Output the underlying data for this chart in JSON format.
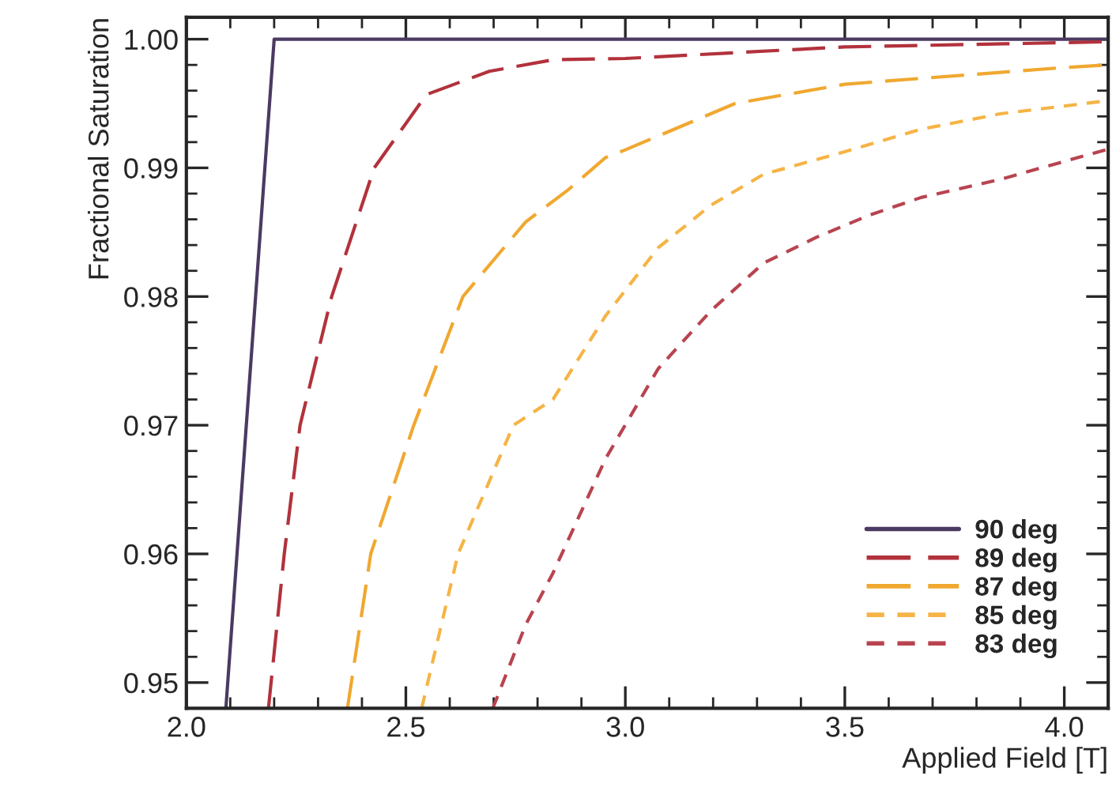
{
  "chart_data": {
    "type": "line",
    "xlabel": "Applied Field [T]",
    "ylabel": "Fractional Saturation",
    "xlim": [
      2.0,
      4.1
    ],
    "ylim": [
      0.948,
      1.0017
    ],
    "xticks": [
      {
        "value": 2.0,
        "label": "2.0"
      },
      {
        "value": 2.5,
        "label": "2.5"
      },
      {
        "value": 3.0,
        "label": "3.0"
      },
      {
        "value": 3.5,
        "label": "3.5"
      },
      {
        "value": 4.0,
        "label": "4.0"
      }
    ],
    "yticks": [
      {
        "value": 0.95,
        "label": "0.95"
      },
      {
        "value": 0.96,
        "label": "0.96"
      },
      {
        "value": 0.97,
        "label": "0.97"
      },
      {
        "value": 0.98,
        "label": "0.98"
      },
      {
        "value": 0.99,
        "label": "0.99"
      },
      {
        "value": 1.0,
        "label": "1.00"
      }
    ],
    "grid": false,
    "legend": "bottom right",
    "series": [
      {
        "name": "90 deg",
        "color": "#4b3a62",
        "line_style": "solid",
        "x": [
          2.09,
          2.2,
          4.1
        ],
        "values": [
          0.948,
          1.0,
          1.0
        ]
      },
      {
        "name": "89 deg",
        "color": "#b2323c",
        "line_style": "dashed",
        "x": [
          2.187,
          2.223,
          2.259,
          2.331,
          2.428,
          2.547,
          2.69,
          2.835,
          3.0,
          3.5,
          4.1
        ],
        "values": [
          0.948,
          0.96,
          0.97,
          0.98,
          0.99,
          0.9957,
          0.9975,
          0.9984,
          0.9985,
          0.9994,
          0.9998
        ]
      },
      {
        "name": "87 deg",
        "color": "#f0a830",
        "line_style": "dashed",
        "x": [
          2.367,
          2.42,
          2.518,
          2.63,
          2.773,
          2.87,
          2.955,
          3.0,
          3.25,
          3.5,
          4.0,
          4.1
        ],
        "values": [
          0.948,
          0.96,
          0.97,
          0.98,
          0.9858,
          0.9883,
          0.9908,
          0.9914,
          0.995,
          0.9965,
          0.9978,
          0.998
        ]
      },
      {
        "name": "85 deg",
        "color": "#f5b445",
        "line_style": "dotted",
        "x": [
          2.536,
          2.619,
          2.745,
          2.835,
          2.955,
          3.075,
          3.195,
          3.315,
          3.494,
          3.674,
          3.854,
          4.094
        ],
        "values": [
          0.948,
          0.96,
          0.97,
          0.972,
          0.9785,
          0.9838,
          0.9871,
          0.9895,
          0.9912,
          0.993,
          0.9942,
          0.9952
        ]
      },
      {
        "name": "83 deg",
        "color": "#b84450",
        "line_style": "dotted",
        "x": [
          2.698,
          2.773,
          2.835,
          2.955,
          3.075,
          3.195,
          3.315,
          3.435,
          3.554,
          3.674,
          3.854,
          4.094
        ],
        "values": [
          0.948,
          0.9545,
          0.9585,
          0.9674,
          0.9744,
          0.9789,
          0.9826,
          0.9846,
          0.9863,
          0.9877,
          0.9891,
          0.9914
        ]
      }
    ]
  }
}
